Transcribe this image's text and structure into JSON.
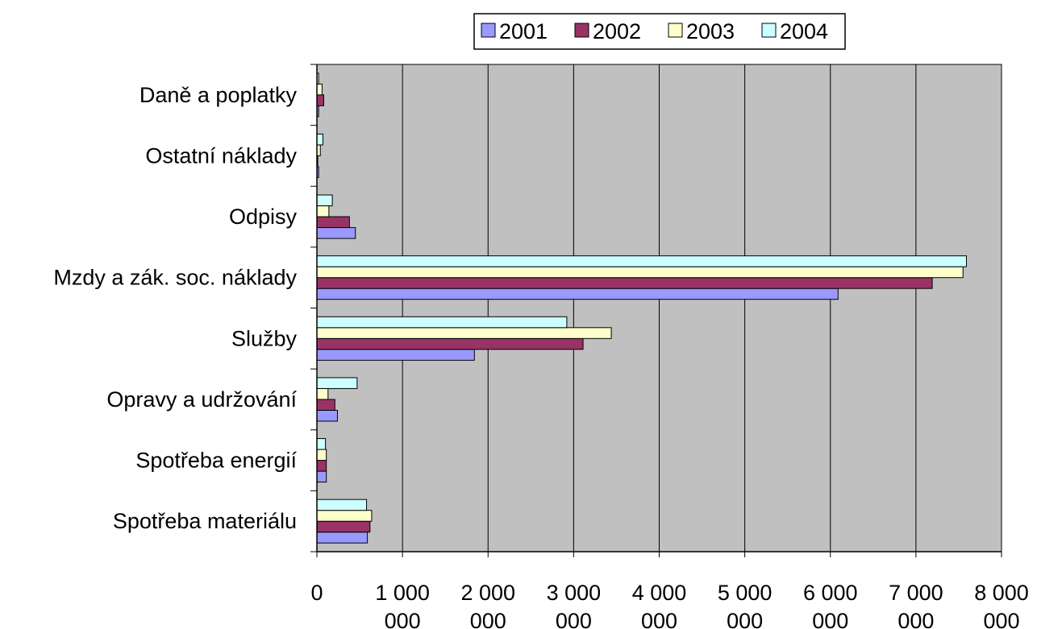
{
  "chart_data": {
    "type": "bar",
    "orientation": "horizontal",
    "categories": [
      "Daně a poplatky",
      "Ostatní náklady",
      "Odpisy",
      "Mzdy a zák. soc. náklady",
      "Služby",
      "Opravy a udržování",
      "Spotřeba energií",
      "Spotřeba materiálu"
    ],
    "series": [
      {
        "name": "2001",
        "color": "#9999ff",
        "values": [
          20000,
          20000,
          450000,
          6090000,
          1840000,
          240000,
          110000,
          590000
        ]
      },
      {
        "name": "2002",
        "color": "#993366",
        "values": [
          80000,
          10000,
          380000,
          7190000,
          3110000,
          210000,
          110000,
          620000
        ]
      },
      {
        "name": "2003",
        "color": "#ffffcc",
        "values": [
          60000,
          40000,
          140000,
          7550000,
          3440000,
          130000,
          110000,
          640000
        ]
      },
      {
        "name": "2004",
        "color": "#ccffff",
        "values": [
          20000,
          70000,
          180000,
          7590000,
          2920000,
          470000,
          100000,
          580000
        ]
      }
    ],
    "xlim": [
      0,
      8000000
    ],
    "xticks": [
      {
        "value": 0,
        "line1": "0",
        "line2": ""
      },
      {
        "value": 1000000,
        "line1": "1 000",
        "line2": "000"
      },
      {
        "value": 2000000,
        "line1": "2 000",
        "line2": "000"
      },
      {
        "value": 3000000,
        "line1": "3 000",
        "line2": "000"
      },
      {
        "value": 4000000,
        "line1": "4 000",
        "line2": "000"
      },
      {
        "value": 5000000,
        "line1": "5 000",
        "line2": "000"
      },
      {
        "value": 6000000,
        "line1": "6 000",
        "line2": "000"
      },
      {
        "value": 7000000,
        "line1": "7 000",
        "line2": "000"
      },
      {
        "value": 8000000,
        "line1": "8 000",
        "line2": "000"
      }
    ],
    "grid": true,
    "plot_background": "#c0c0c0",
    "legend_position": "top"
  }
}
